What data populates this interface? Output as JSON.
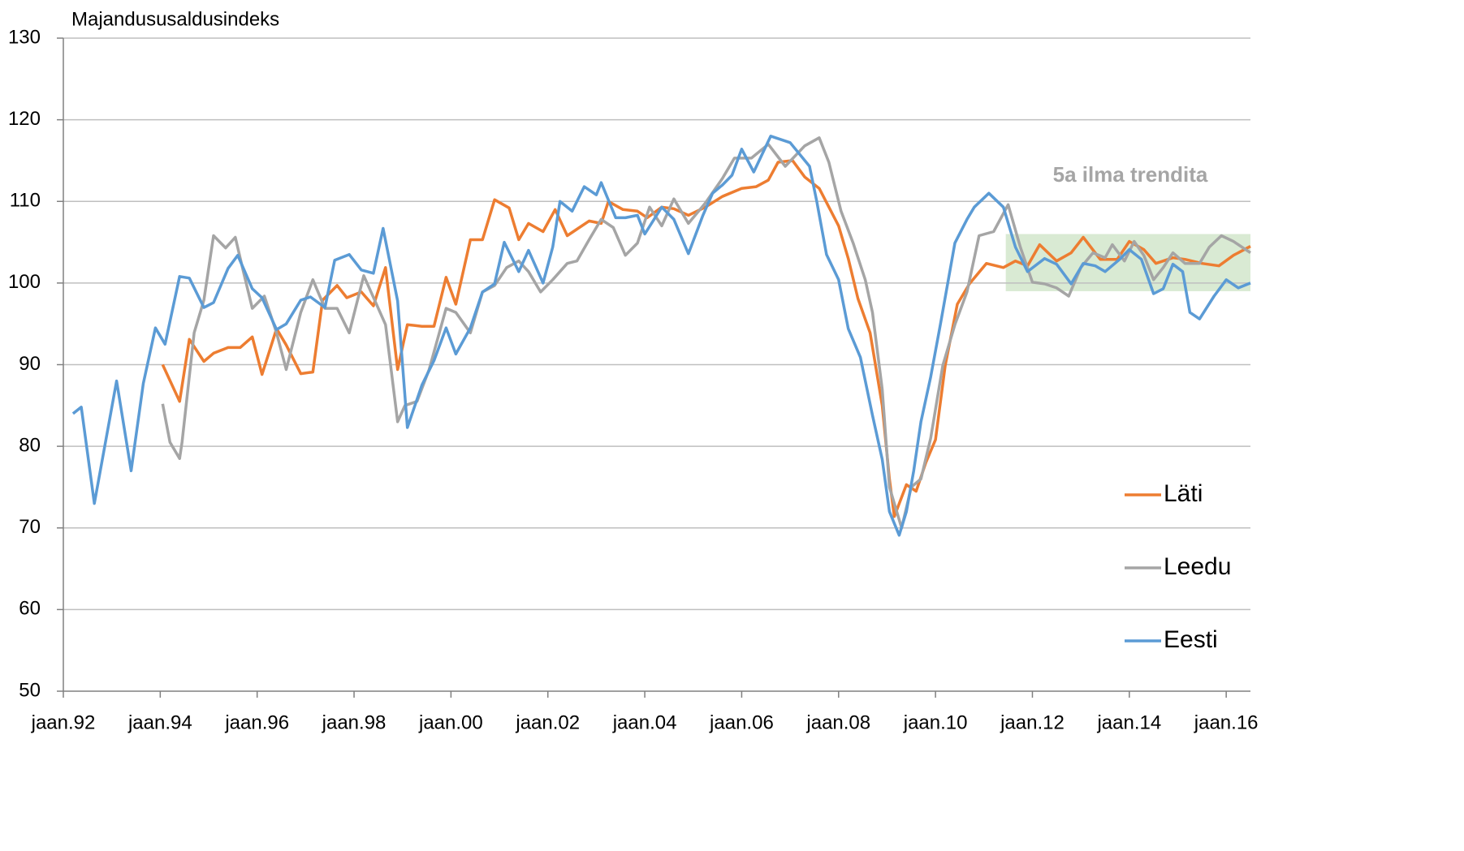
{
  "chart_data": {
    "type": "line",
    "title": "Majandususaldusindeks",
    "xlim": [
      1992,
      2016.5
    ],
    "ylim": [
      50,
      130
    ],
    "yticks": [
      50,
      60,
      70,
      80,
      90,
      100,
      110,
      120,
      130
    ],
    "xticks": [
      {
        "value": 1992,
        "label": "jaan.92"
      },
      {
        "value": 1994,
        "label": "jaan.94"
      },
      {
        "value": 1996,
        "label": "jaan.96"
      },
      {
        "value": 1998,
        "label": "jaan.98"
      },
      {
        "value": 2000,
        "label": "jaan.00"
      },
      {
        "value": 2002,
        "label": "jaan.02"
      },
      {
        "value": 2004,
        "label": "jaan.04"
      },
      {
        "value": 2006,
        "label": "jaan.06"
      },
      {
        "value": 2008,
        "label": "jaan.08"
      },
      {
        "value": 2010,
        "label": "jaan.10"
      },
      {
        "value": 2012,
        "label": "jaan.12"
      },
      {
        "value": 2014,
        "label": "jaan.14"
      },
      {
        "value": 2016,
        "label": "jaan.16"
      }
    ],
    "grid": true,
    "legend": "right",
    "highlight": {
      "text": "5a ilma trendita",
      "color": "#d9ead3",
      "xlim": [
        2011.45,
        2016.5
      ],
      "ylim": [
        99,
        106
      ]
    },
    "series": [
      {
        "name": "Läti",
        "color": "#ed7d31",
        "x": [
          1994.05,
          1994.4,
          1994.6,
          1994.9,
          1995.1,
          1995.4,
          1995.65,
          1995.9,
          1996.1,
          1996.4,
          1996.6,
          1996.9,
          1997.15,
          1997.35,
          1997.65,
          1997.85,
          1998.15,
          1998.4,
          1998.65,
          1998.9,
          1999.1,
          1999.4,
          1999.65,
          1999.9,
          2000.1,
          2000.4,
          2000.65,
          2000.9,
          2001.2,
          2001.4,
          2001.6,
          2001.9,
          2002.15,
          2002.4,
          2002.6,
          2002.85,
          2003.1,
          2003.25,
          2003.55,
          2003.85,
          2004.05,
          2004.35,
          2004.6,
          2004.9,
          2005.25,
          2005.6,
          2006.0,
          2006.3,
          2006.55,
          2006.75,
          2007.05,
          2007.3,
          2007.6,
          2008.0,
          2008.2,
          2008.4,
          2008.65,
          2008.9,
          2009.05,
          2009.15,
          2009.4,
          2009.6,
          2009.8,
          2010.0,
          2010.2,
          2010.45,
          2010.7,
          2011.05,
          2011.4,
          2011.65,
          2011.9,
          2012.15,
          2012.5,
          2012.8,
          2013.05,
          2013.4,
          2013.75,
          2014.0,
          2014.3,
          2014.55,
          2014.9,
          2015.15,
          2015.5,
          2015.85,
          2016.15,
          2016.5
        ],
        "values": [
          90,
          85.5,
          93.1,
          90.4,
          91.4,
          92.1,
          92.1,
          93.4,
          88.8,
          94.4,
          92.4,
          88.9,
          89.1,
          97.9,
          99.7,
          98.2,
          98.9,
          97.2,
          101.9,
          89.4,
          94.9,
          94.7,
          94.7,
          100.7,
          97.4,
          105.3,
          105.3,
          110.2,
          109.2,
          105.3,
          107.3,
          106.3,
          109,
          105.8,
          106.6,
          107.6,
          107.3,
          110,
          109,
          108.8,
          108,
          109.3,
          109.1,
          108.3,
          109.3,
          110.6,
          111.6,
          111.8,
          112.6,
          114.8,
          115,
          113,
          111.6,
          107,
          103,
          98.1,
          93.9,
          85,
          76,
          71.4,
          75.3,
          74.5,
          78,
          80.8,
          89.9,
          97.4,
          99.9,
          102.4,
          101.9,
          102.7,
          102.1,
          104.7,
          102.7,
          103.7,
          105.6,
          102.9,
          102.9,
          105.1,
          104.1,
          102.4,
          103.1,
          102.9,
          102.4,
          102.1,
          103.4,
          104.5
        ]
      },
      {
        "name": "Leedu",
        "color": "#a5a5a5",
        "x": [
          1994.05,
          1994.2,
          1994.4,
          1994.45,
          1994.7,
          1994.9,
          1995.1,
          1995.35,
          1995.55,
          1995.7,
          1995.9,
          1996.15,
          1996.4,
          1996.6,
          1996.9,
          1997.15,
          1997.4,
          1997.65,
          1997.9,
          1998.2,
          1998.5,
          1998.65,
          1998.9,
          1999.05,
          1999.3,
          1999.55,
          1999.9,
          2000.1,
          2000.4,
          2000.65,
          2000.9,
          2001.15,
          2001.4,
          2001.6,
          2001.85,
          2002.1,
          2002.4,
          2002.6,
          2002.85,
          2003.1,
          2003.35,
          2003.6,
          2003.85,
          2004.1,
          2004.35,
          2004.6,
          2004.9,
          2005.25,
          2005.6,
          2005.85,
          2006.2,
          2006.55,
          2006.9,
          2007.3,
          2007.6,
          2007.8,
          2008.05,
          2008.3,
          2008.55,
          2008.7,
          2008.9,
          2009.05,
          2009.3,
          2009.5,
          2009.7,
          2009.9,
          2010.15,
          2010.4,
          2010.65,
          2010.9,
          2011.2,
          2011.5,
          2011.75,
          2012.0,
          2012.25,
          2012.5,
          2012.75,
          2013.0,
          2013.25,
          2013.5,
          2013.65,
          2013.9,
          2014.1,
          2014.3,
          2014.5,
          2014.7,
          2014.9,
          2015.15,
          2015.45,
          2015.65,
          2015.9,
          2016.15,
          2016.5
        ],
        "values": [
          85.2,
          80.5,
          78.5,
          80.5,
          93.9,
          97.9,
          105.8,
          104.3,
          105.6,
          101.8,
          96.9,
          98.4,
          93.9,
          89.4,
          96.4,
          100.4,
          96.9,
          96.9,
          93.9,
          100.9,
          96.9,
          94.9,
          83,
          85,
          85.5,
          89.4,
          96.9,
          96.4,
          93.9,
          98.9,
          99.7,
          101.9,
          102.7,
          101.4,
          98.9,
          100.4,
          102.4,
          102.7,
          105.3,
          107.8,
          106.8,
          103.4,
          104.9,
          109.3,
          107,
          110.3,
          107.3,
          109.8,
          112.8,
          115.3,
          115.3,
          117,
          114.3,
          116.8,
          117.8,
          114.8,
          108.8,
          104.9,
          100.4,
          96.4,
          87,
          75,
          70,
          75,
          76,
          81,
          89.9,
          94.9,
          98.9,
          105.8,
          106.3,
          109.6,
          104.4,
          100.1,
          99.9,
          99.4,
          98.4,
          101.9,
          103.7,
          103.1,
          104.7,
          102.7,
          105.1,
          103.4,
          100.4,
          101.9,
          103.7,
          102.4,
          102.4,
          104.4,
          105.8,
          105.1,
          103.7
        ]
      },
      {
        "name": "Eesti",
        "color": "#5b9bd5",
        "x": [
          1992.2,
          1992.37,
          1992.64,
          1993.1,
          1993.4,
          1993.65,
          1993.9,
          1994.1,
          1994.4,
          1994.6,
          1994.9,
          1995.1,
          1995.4,
          1995.6,
          1995.9,
          1996.1,
          1996.4,
          1996.6,
          1996.9,
          1997.1,
          1997.4,
          1997.6,
          1997.9,
          1998.15,
          1998.4,
          1998.6,
          1998.9,
          1999.1,
          1999.4,
          1999.65,
          1999.9,
          2000.1,
          2000.4,
          2000.65,
          2000.9,
          2001.1,
          2001.4,
          2001.6,
          2001.9,
          2002.1,
          2002.25,
          2002.5,
          2002.75,
          2003.0,
          2003.1,
          2003.4,
          2003.6,
          2003.85,
          2004.0,
          2004.35,
          2004.6,
          2004.9,
          2005.2,
          2005.4,
          2005.6,
          2005.8,
          2006.0,
          2006.25,
          2006.6,
          2007.0,
          2007.4,
          2007.55,
          2007.75,
          2008.0,
          2008.2,
          2008.45,
          2008.7,
          2008.9,
          2009.05,
          2009.25,
          2009.4,
          2009.55,
          2009.7,
          2009.9,
          2010.1,
          2010.4,
          2010.65,
          2010.8,
          2011.1,
          2011.4,
          2011.65,
          2011.9,
          2012.25,
          2012.5,
          2012.8,
          2013.05,
          2013.3,
          2013.5,
          2013.8,
          2014.0,
          2014.25,
          2014.5,
          2014.7,
          2014.9,
          2015.1,
          2015.25,
          2015.45,
          2015.75,
          2016.0,
          2016.25,
          2016.5
        ],
        "values": [
          84,
          84.8,
          73,
          88,
          77,
          87.7,
          94.5,
          92.5,
          100.8,
          100.6,
          97,
          97.6,
          101.8,
          103.4,
          99.3,
          98.2,
          94.3,
          95,
          97.9,
          98.3,
          97,
          102.8,
          103.5,
          101.6,
          101.2,
          106.7,
          97.8,
          82.3,
          87.5,
          90.5,
          94.5,
          91.3,
          94.5,
          98.9,
          99.9,
          105,
          101.4,
          104,
          100,
          104.4,
          110,
          108.8,
          111.8,
          110.8,
          112.3,
          108,
          108,
          108.3,
          106,
          109.3,
          107.8,
          103.6,
          108.3,
          111,
          112,
          113.2,
          116.4,
          113.6,
          118,
          117.2,
          114.3,
          110,
          103.5,
          100.4,
          94.4,
          90.9,
          83.8,
          78.4,
          72,
          69.1,
          72,
          77,
          83,
          88.5,
          94.9,
          104.9,
          107.8,
          109.3,
          111,
          109.3,
          104.4,
          101.4,
          103,
          102.3,
          99.9,
          102.4,
          102.1,
          101.4,
          102.9,
          104.1,
          102.9,
          98.7,
          99.3,
          102.3,
          101.4,
          96.4,
          95.6,
          98.4,
          100.4,
          99.4,
          100
        ]
      }
    ]
  }
}
